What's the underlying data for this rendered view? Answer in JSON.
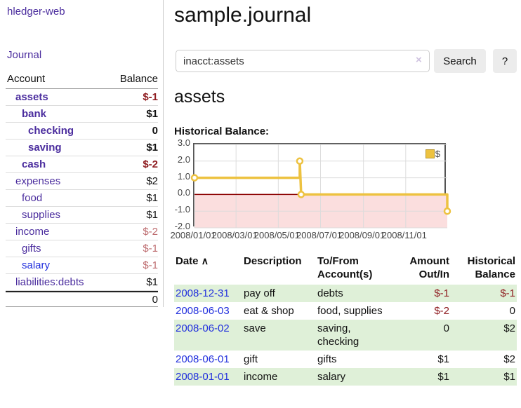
{
  "colors": {
    "link_purple": "#4b2d9e",
    "link_blue": "#2230dd",
    "negative_red": "#8f1d21",
    "negative_muted": "#bd6b6e",
    "row_stripe_green": "#dff0d8",
    "chart_gold": "#EDC240",
    "chart_negative_region": "#fbdede",
    "chart_zero_line": "#8b0000"
  },
  "sidebar": {
    "app_title": "hledger-web",
    "journal_link": "Journal",
    "accounts_table": {
      "headers": {
        "account": "Account",
        "balance": "Balance"
      },
      "rows": [
        {
          "name": "assets",
          "level": 1,
          "balance": "$-1"
        },
        {
          "name": "bank",
          "level": 2,
          "balance": "$1"
        },
        {
          "name": "checking",
          "level": 3,
          "balance": "0"
        },
        {
          "name": "saving",
          "level": 3,
          "balance": "$1"
        },
        {
          "name": "cash",
          "level": 2,
          "balance": "$-2"
        },
        {
          "name": "expenses",
          "level": 1,
          "balance": "$2"
        },
        {
          "name": "food",
          "level": 2,
          "balance": "$1"
        },
        {
          "name": "supplies",
          "level": 2,
          "balance": "$1"
        },
        {
          "name": "income",
          "level": 1,
          "balance": "$-2"
        },
        {
          "name": "gifts",
          "level": 2,
          "balance": "$-1"
        },
        {
          "name": "salary",
          "level": 2,
          "balance": "$-1"
        },
        {
          "name": "liabilities:debts",
          "level": 1,
          "balance": "$1"
        }
      ],
      "total": "0"
    }
  },
  "header": {
    "title": "sample.journal"
  },
  "search": {
    "value": "inacct:assets",
    "clear_icon": "×",
    "search_label": "Search",
    "help_label": "?"
  },
  "account_page": {
    "heading": "assets",
    "chart_title": "Historical Balance:"
  },
  "chart_data": {
    "type": "line",
    "title": "Historical Balance:",
    "x_unit": "days since 2008-01-01",
    "x_range": [
      0,
      365
    ],
    "ylim": [
      -2,
      3
    ],
    "grid": true,
    "legend": {
      "label": "$",
      "position": "top-right"
    },
    "negative_region_color": "#fbdede",
    "zero_line_color": "#8b0000",
    "grid_color": "#dcdcdc",
    "series": [
      {
        "name": "$",
        "color": "#EDC240",
        "points": [
          [
            0,
            1
          ],
          [
            152,
            1
          ],
          [
            152,
            2
          ],
          [
            154,
            0
          ],
          [
            365,
            0
          ],
          [
            365,
            -1
          ]
        ],
        "markers": [
          [
            0,
            1
          ],
          [
            152,
            2
          ],
          [
            154,
            0
          ],
          [
            365,
            -1
          ]
        ]
      }
    ],
    "x_ticks": [
      {
        "pos": 0,
        "label": "2008/01/01"
      },
      {
        "pos": 60,
        "label": "2008/03/01"
      },
      {
        "pos": 121,
        "label": "2008/05/01"
      },
      {
        "pos": 182,
        "label": "2008/07/01"
      },
      {
        "pos": 244,
        "label": "2008/09/01"
      },
      {
        "pos": 305,
        "label": "2008/11/01"
      }
    ],
    "y_ticks": [
      {
        "v": 3,
        "label": "3.0"
      },
      {
        "v": 2,
        "label": "2.0"
      },
      {
        "v": 1,
        "label": "1.0"
      },
      {
        "v": 0,
        "label": "0.0"
      },
      {
        "v": -1,
        "label": "-1.0"
      },
      {
        "v": -2,
        "label": "-2.0"
      }
    ]
  },
  "register_table": {
    "sort_icon": "∧",
    "columns": [
      "Date",
      "Description",
      "To/From Account(s)",
      "Amount Out/In",
      "Historical Balance"
    ],
    "rows": [
      {
        "date": "2008-12-31",
        "description": "pay off",
        "accounts": "debts",
        "amount": "$-1",
        "balance": "$-1"
      },
      {
        "date": "2008-06-03",
        "description": "eat & shop",
        "accounts": "food, supplies",
        "amount": "$-2",
        "balance": "0"
      },
      {
        "date": "2008-06-02",
        "description": "save",
        "accounts": "saving, checking",
        "amount": "0",
        "balance": "$2"
      },
      {
        "date": "2008-06-01",
        "description": "gift",
        "accounts": "gifts",
        "amount": "$1",
        "balance": "$2"
      },
      {
        "date": "2008-01-01",
        "description": "income",
        "accounts": "salary",
        "amount": "$1",
        "balance": "$1"
      }
    ]
  }
}
